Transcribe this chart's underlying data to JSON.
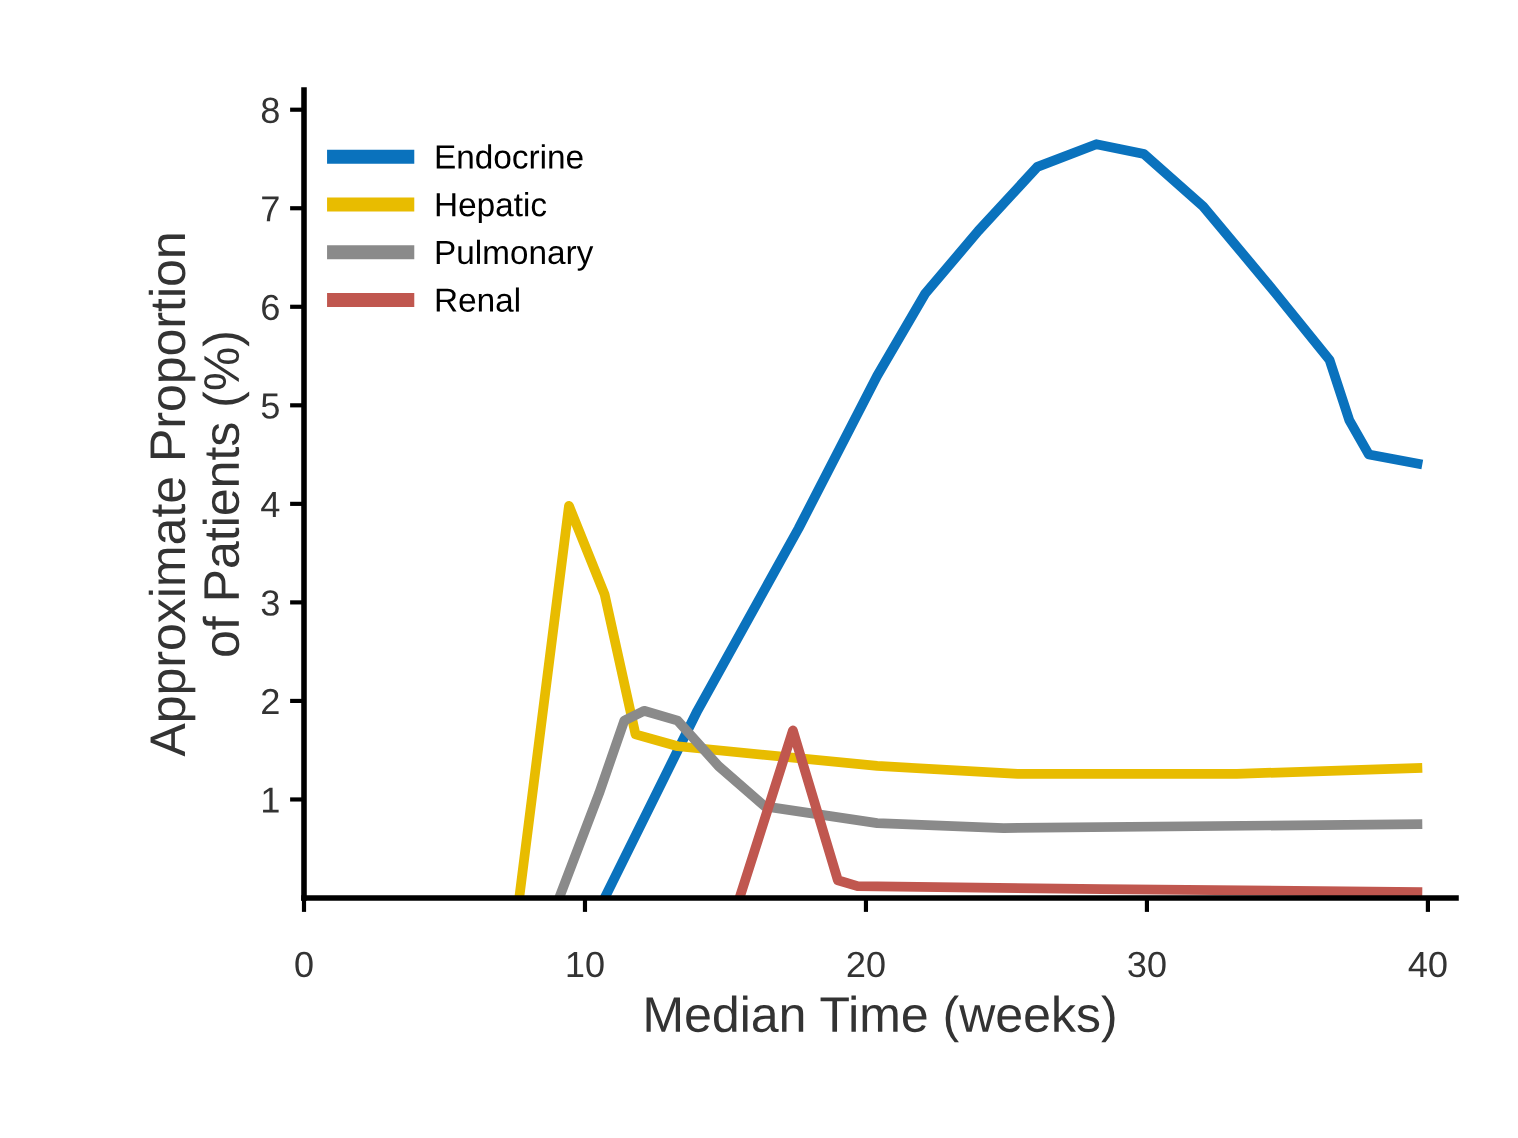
{
  "chart_data": {
    "type": "line",
    "xlabel": "Median Time (weeks)",
    "ylabel": "Approximate Proportion\nof Patients (%)",
    "xlim": [
      0,
      41
    ],
    "xticks": [
      0,
      10,
      20,
      30,
      40
    ],
    "ylim": [
      0,
      8.2
    ],
    "yticks": [
      1,
      2,
      3,
      4,
      5,
      6,
      7,
      8
    ],
    "grid": false,
    "legend": "top left",
    "marker": "none",
    "line_style": "solid",
    "series": [
      {
        "name": "Endocrine",
        "color": "#0a72bd",
        "x": [
          10.7,
          14.0,
          17.6,
          20.4,
          22.1,
          24.0,
          26.1,
          28.2,
          29.9,
          32.0,
          34.4,
          36.5,
          37.2,
          37.9,
          39.8
        ],
        "values": [
          0,
          1.9,
          3.75,
          5.3,
          6.13,
          6.77,
          7.42,
          7.65,
          7.55,
          7.02,
          6.2,
          5.46,
          4.85,
          4.5,
          4.4
        ]
      },
      {
        "name": "Hepatic",
        "color": "#e8bc00",
        "x": [
          7.66,
          9.43,
          10.7,
          11.8,
          13.3,
          20.4,
          25.4,
          33.2,
          39.8
        ],
        "values": [
          0,
          3.98,
          3.08,
          1.66,
          1.54,
          1.34,
          1.26,
          1.26,
          1.32
        ]
      },
      {
        "name": "Pulmonary",
        "color": "#8a8a8a",
        "x": [
          9.08,
          10.5,
          11.4,
          12.1,
          13.3,
          14.75,
          16.4,
          20.4,
          24.9,
          39.8
        ],
        "values": [
          0,
          1.06,
          1.8,
          1.9,
          1.8,
          1.34,
          0.93,
          0.76,
          0.71,
          0.75
        ]
      },
      {
        "name": "Renal",
        "color": "#c0574f",
        "x": [
          15.5,
          17.4,
          19.0,
          19.7,
          28.4,
          39.8
        ],
        "values": [
          0,
          1.7,
          0.18,
          0.12,
          0.09,
          0.06
        ]
      }
    ]
  }
}
